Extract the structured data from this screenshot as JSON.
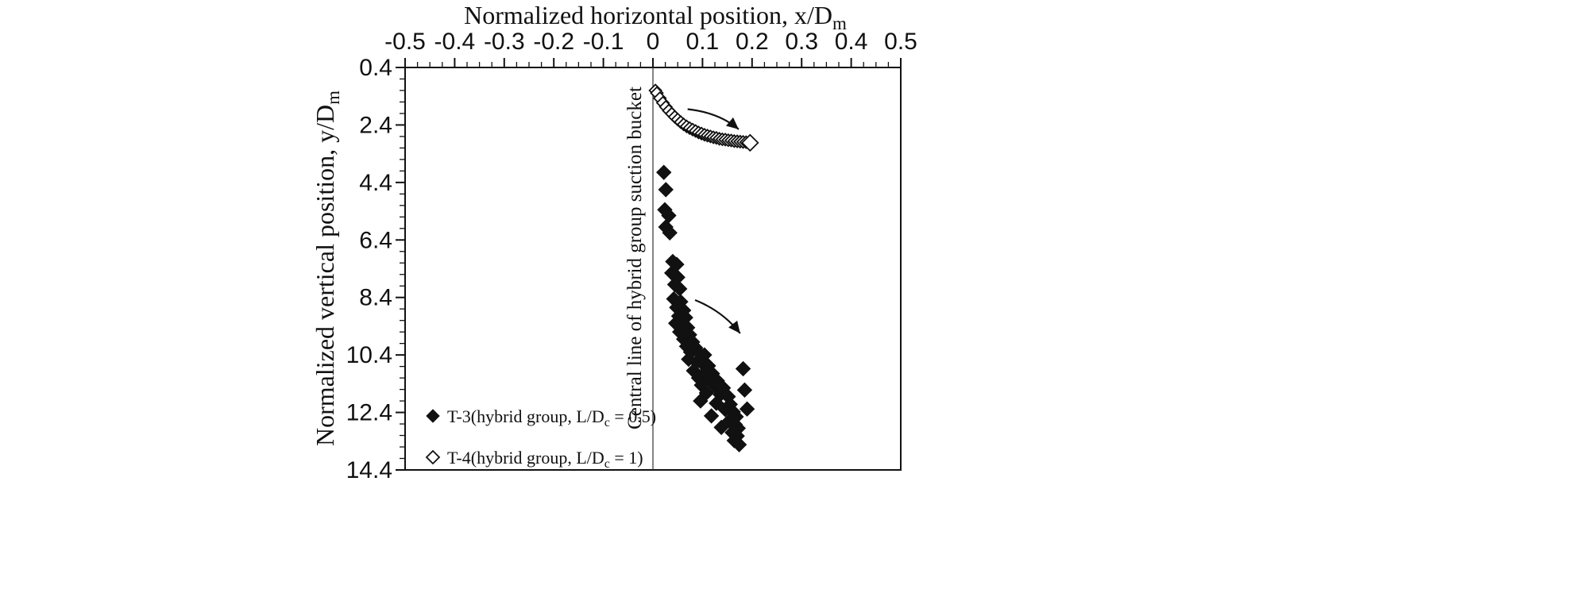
{
  "colors": {
    "ink": "#111111",
    "background": "#ffffff",
    "center_line": "#333333"
  },
  "chart_data": {
    "type": "scatter",
    "x_axis": {
      "title_pre": "Normalized horizontal position, x/D",
      "title_sub": "m",
      "lim": [
        -0.5,
        0.5
      ],
      "tick_values": [
        -0.5,
        -0.4,
        -0.3,
        -0.2,
        -0.1,
        0,
        0.1,
        0.2,
        0.3,
        0.4,
        0.5
      ],
      "tick_labels": [
        "-0.5",
        "-0.4",
        "-0.3",
        "-0.2",
        "-0.1",
        "0",
        "0.1",
        "0.2",
        "0.3",
        "0.4",
        "0.5"
      ],
      "minor_step": 0.025,
      "position": "top"
    },
    "y_axis": {
      "title_pre": "Normalized vertical position, y/D",
      "title_sub": "m",
      "lim": [
        0.4,
        14.4
      ],
      "tick_values": [
        0.4,
        2.4,
        4.4,
        6.4,
        8.4,
        10.4,
        12.4,
        14.4
      ],
      "tick_labels": [
        "0.4",
        "2.4",
        "4.4",
        "6.4",
        "8.4",
        "10.4",
        "12.4",
        "14.4"
      ],
      "minor_step": 0.4,
      "direction": "increasing-downward",
      "position": "left"
    },
    "center_line": {
      "x": 0,
      "label": "Central line of hybrid group suction bucket"
    },
    "grid": false,
    "legend_position": "bottom-left-inside",
    "series": [
      {
        "name_pre": "T-3(hybrid group, L/D",
        "name_sub": "c",
        "name_post": " = 0.5)",
        "marker": "filled-diamond",
        "points": [
          [
            0.022,
            4.05
          ],
          [
            0.026,
            4.65
          ],
          [
            0.024,
            5.35
          ],
          [
            0.032,
            5.55
          ],
          [
            0.026,
            5.95
          ],
          [
            0.034,
            6.15
          ],
          [
            0.04,
            7.15
          ],
          [
            0.048,
            7.25
          ],
          [
            0.038,
            7.55
          ],
          [
            0.05,
            7.7
          ],
          [
            0.044,
            7.95
          ],
          [
            0.054,
            8.1
          ],
          [
            0.042,
            8.45
          ],
          [
            0.056,
            8.55
          ],
          [
            0.048,
            8.75
          ],
          [
            0.062,
            8.85
          ],
          [
            0.052,
            9.05
          ],
          [
            0.066,
            9.1
          ],
          [
            0.046,
            9.3
          ],
          [
            0.058,
            9.35
          ],
          [
            0.07,
            9.45
          ],
          [
            0.054,
            9.6
          ],
          [
            0.074,
            9.7
          ],
          [
            0.062,
            9.85
          ],
          [
            0.08,
            9.95
          ],
          [
            0.068,
            10.1
          ],
          [
            0.086,
            10.15
          ],
          [
            0.076,
            10.3
          ],
          [
            0.094,
            10.35
          ],
          [
            0.104,
            10.4
          ],
          [
            0.072,
            10.55
          ],
          [
            0.088,
            10.65
          ],
          [
            0.1,
            10.7
          ],
          [
            0.112,
            10.78
          ],
          [
            0.082,
            10.95
          ],
          [
            0.106,
            11.0
          ],
          [
            0.12,
            11.05
          ],
          [
            0.092,
            11.2
          ],
          [
            0.116,
            11.25
          ],
          [
            0.13,
            11.3
          ],
          [
            0.098,
            11.45
          ],
          [
            0.126,
            11.5
          ],
          [
            0.142,
            11.55
          ],
          [
            0.108,
            11.72
          ],
          [
            0.136,
            11.78
          ],
          [
            0.152,
            11.85
          ],
          [
            0.096,
            12.0
          ],
          [
            0.128,
            12.08
          ],
          [
            0.156,
            12.12
          ],
          [
            0.146,
            12.3
          ],
          [
            0.162,
            12.38
          ],
          [
            0.118,
            12.52
          ],
          [
            0.168,
            12.55
          ],
          [
            0.154,
            12.7
          ],
          [
            0.166,
            12.82
          ],
          [
            0.138,
            12.92
          ],
          [
            0.172,
            12.95
          ],
          [
            0.16,
            13.1
          ],
          [
            0.17,
            13.22
          ],
          [
            0.164,
            13.38
          ],
          [
            0.174,
            13.52
          ],
          [
            0.182,
            10.88
          ],
          [
            0.185,
            11.62
          ],
          [
            0.19,
            12.28
          ]
        ]
      },
      {
        "name_pre": "T-4(hybrid group, L/D",
        "name_sub": "c",
        "name_post": " = 1)",
        "marker": "open-diamond",
        "points": [
          [
            0.005,
            1.2
          ],
          [
            0.008,
            1.29
          ],
          [
            0.014,
            1.47
          ],
          [
            0.02,
            1.63
          ],
          [
            0.026,
            1.77
          ],
          [
            0.032,
            1.9
          ],
          [
            0.038,
            2.01
          ],
          [
            0.044,
            2.12
          ],
          [
            0.05,
            2.21
          ],
          [
            0.056,
            2.3
          ],
          [
            0.062,
            2.38
          ],
          [
            0.068,
            2.45
          ],
          [
            0.074,
            2.51
          ],
          [
            0.08,
            2.56
          ],
          [
            0.086,
            2.61
          ],
          [
            0.092,
            2.66
          ],
          [
            0.098,
            2.7
          ],
          [
            0.104,
            2.74
          ],
          [
            0.11,
            2.77
          ],
          [
            0.116,
            2.8
          ],
          [
            0.122,
            2.83
          ],
          [
            0.128,
            2.85
          ],
          [
            0.134,
            2.88
          ],
          [
            0.14,
            2.9
          ],
          [
            0.146,
            2.91
          ],
          [
            0.152,
            2.93
          ],
          [
            0.158,
            2.94
          ],
          [
            0.164,
            2.96
          ],
          [
            0.17,
            2.97
          ],
          [
            0.176,
            2.98
          ],
          [
            0.182,
            2.99
          ],
          [
            0.188,
            3.0
          ],
          [
            0.196,
            3.02
          ]
        ]
      }
    ],
    "arrows": [
      {
        "from": [
          0.07,
          1.85
        ],
        "ctrl": [
          0.133,
          1.97
        ],
        "to": [
          0.173,
          2.55
        ]
      },
      {
        "from": [
          0.085,
          8.49
        ],
        "ctrl": [
          0.141,
          8.88
        ],
        "to": [
          0.176,
          9.65
        ]
      }
    ]
  }
}
